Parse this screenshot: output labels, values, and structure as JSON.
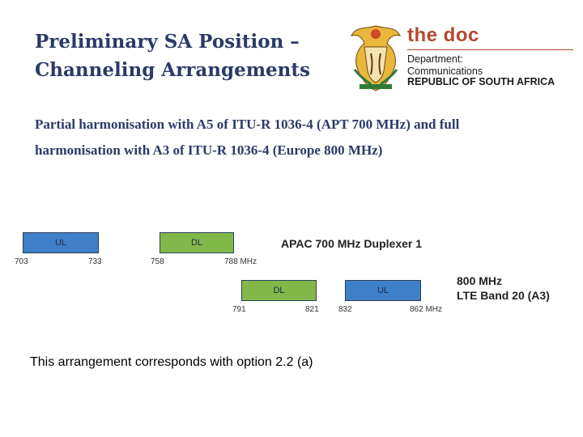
{
  "slide": {
    "title_line1": "Preliminary SA Position –",
    "title_line2": "Channeling Arrangements",
    "subtitle_line1": "Partial harmonisation with A5 of ITU-R 1036-4 (APT 700 MHz) and full",
    "subtitle_line2": "harmonisation with A3 of ITU-R 1036-4 (Europe 800 MHz)",
    "note": "This arrangement corresponds with option 2.2 (a)"
  },
  "logo": {
    "brand": "the doc",
    "dept_line1": "Department:",
    "dept_line2": "Communications",
    "country": "REPUBLIC OF SOUTH AFRICA"
  },
  "diagram": {
    "apac": {
      "label": "APAC 700 MHz Duplexer 1",
      "ul_label": "UL",
      "dl_label": "DL",
      "f1": "703",
      "f2": "733",
      "f3": "758",
      "f4": "788 MHz"
    },
    "lte": {
      "label_line1": "800 MHz",
      "label_line2": "LTE Band 20 (A3)",
      "dl_label": "DL",
      "ul_label": "UL",
      "f1": "791",
      "f2": "821",
      "f3": "832",
      "f4": "862 MHz"
    },
    "colors": {
      "ul": "#3f7fc7",
      "dl": "#82b84a"
    }
  }
}
